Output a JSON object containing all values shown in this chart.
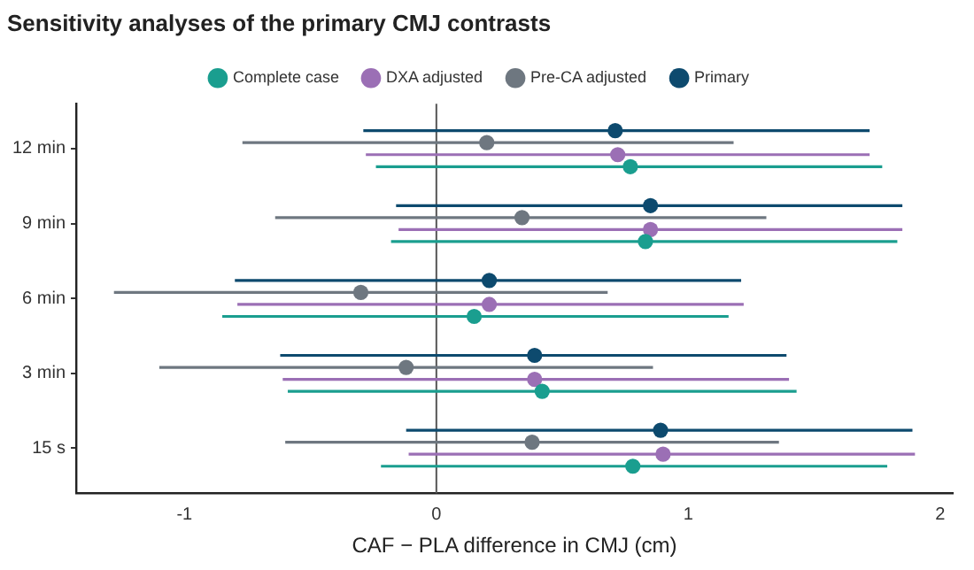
{
  "chart_data": {
    "type": "scatter",
    "orientation": "horizontal",
    "title": "Sensitivity analyses of the primary CMJ contrasts",
    "xlabel": "CAF − PLA difference in CMJ (cm)",
    "categories": [
      "12 min",
      "9 min",
      "6 min",
      "3 min",
      "15 s"
    ],
    "xlim": [
      -1.43,
      2.05
    ],
    "xticks": [
      -1,
      0,
      1,
      2
    ],
    "legend": "top",
    "marker": "circle",
    "ref_lines": [
      {
        "axis": "x",
        "value": 0,
        "color": "#555555"
      }
    ],
    "series": [
      {
        "name": "Complete case",
        "color": "#1a9e8f",
        "values": [
          0.77,
          0.83,
          0.15,
          0.42,
          0.78
        ],
        "errors": [
          [
            -0.24,
            1.77
          ],
          [
            -0.18,
            1.83
          ],
          [
            -0.85,
            1.16
          ],
          [
            -0.59,
            1.43
          ],
          [
            -0.22,
            1.79
          ]
        ]
      },
      {
        "name": "DXA adjusted",
        "color": "#9b6fb5",
        "values": [
          0.72,
          0.85,
          0.21,
          0.39,
          0.9
        ],
        "errors": [
          [
            -0.28,
            1.72
          ],
          [
            -0.15,
            1.85
          ],
          [
            -0.79,
            1.22
          ],
          [
            -0.61,
            1.4
          ],
          [
            -0.11,
            1.9
          ]
        ]
      },
      {
        "name": "Pre-CA adjusted",
        "color": "#6e7780",
        "values": [
          0.2,
          0.34,
          -0.3,
          -0.12,
          0.38
        ],
        "errors": [
          [
            -0.77,
            1.18
          ],
          [
            -0.64,
            1.31
          ],
          [
            -1.28,
            0.68
          ],
          [
            -1.1,
            0.86
          ],
          [
            -0.6,
            1.36
          ]
        ]
      },
      {
        "name": "Primary",
        "color": "#0d4a6e",
        "values": [
          0.71,
          0.85,
          0.21,
          0.39,
          0.89
        ],
        "errors": [
          [
            -0.29,
            1.72
          ],
          [
            -0.16,
            1.85
          ],
          [
            -0.8,
            1.21
          ],
          [
            -0.62,
            1.39
          ],
          [
            -0.12,
            1.89
          ]
        ]
      }
    ]
  }
}
